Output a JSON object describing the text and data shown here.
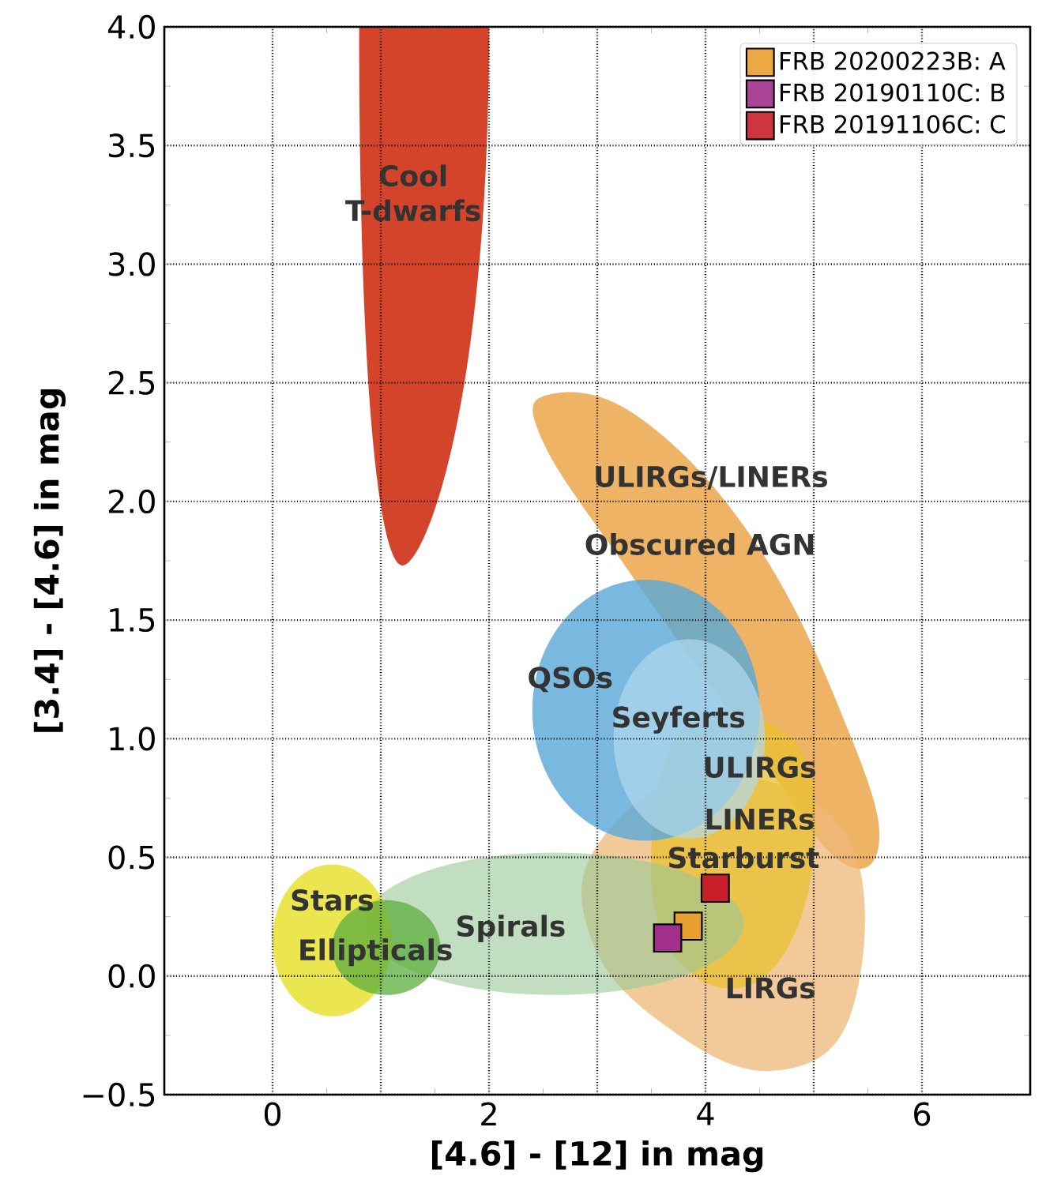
{
  "chart_data": {
    "type": "scatter",
    "xlabel": "[4.6] - [12] in mag",
    "ylabel": "[3.4] - [4.6] in mag",
    "xlim": [
      -1,
      7
    ],
    "ylim": [
      -0.5,
      4
    ],
    "xticks": [
      {
        "value": 0,
        "label": "0"
      },
      {
        "value": 1,
        "label": null
      },
      {
        "value": 2,
        "label": "2"
      },
      {
        "value": 3,
        "label": null
      },
      {
        "value": 4,
        "label": "4"
      },
      {
        "value": 5,
        "label": null
      },
      {
        "value": 6,
        "label": "6"
      }
    ],
    "yticks": [
      {
        "value": -0.5,
        "label": "−0.5"
      },
      {
        "value": 0,
        "label": "0.0"
      },
      {
        "value": 0.5,
        "label": "0.5"
      },
      {
        "value": 1,
        "label": "1.0"
      },
      {
        "value": 1.5,
        "label": "1.5"
      },
      {
        "value": 2,
        "label": "2.0"
      },
      {
        "value": 2.5,
        "label": "2.5"
      },
      {
        "value": 3,
        "label": "3.0"
      },
      {
        "value": 3.5,
        "label": "3.5"
      },
      {
        "value": 4,
        "label": "4.0"
      }
    ],
    "grid": true,
    "legend": "top right",
    "marker": "square",
    "series": [
      {
        "name": "FRB 20200223B: A",
        "color": "#e8a030",
        "x": [
          3.84
        ],
        "values": [
          0.21
        ]
      },
      {
        "name": "FRB 20190110C: B",
        "color": "#a0308c",
        "x": [
          3.65
        ],
        "values": [
          0.16
        ]
      },
      {
        "name": "FRB 20191106C: C",
        "color": "#c8202a",
        "x": [
          4.09
        ],
        "values": [
          0.37
        ]
      }
    ],
    "annotations": [
      "Cool T-dwarfs",
      "ULIRGs/LINERs",
      "Obscured AGN",
      "QSOs",
      "Seyferts",
      "ULIRGs",
      "LINERs",
      "Starburst",
      "LIRGs",
      "Spirals",
      "Stars",
      "Ellipticals"
    ]
  }
}
